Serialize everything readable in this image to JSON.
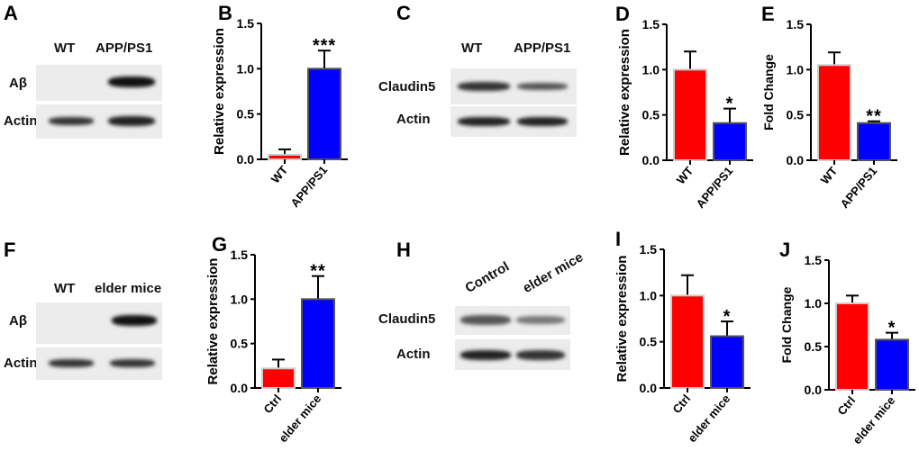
{
  "panels": {
    "A": {
      "letter": "A",
      "lanes": [
        "WT",
        "APP/PS1"
      ],
      "rows": [
        "Aβ",
        "Actin"
      ]
    },
    "C": {
      "letter": "C",
      "lanes": [
        "WT",
        "APP/PS1"
      ],
      "rows": [
        "Claudin5",
        "Actin"
      ]
    },
    "F": {
      "letter": "F",
      "lanes": [
        "WT",
        "elder mice"
      ],
      "rows": [
        "Aβ",
        "Actin"
      ]
    },
    "H": {
      "letter": "H",
      "lanes": [
        "Control",
        "elder mice"
      ],
      "rows": [
        "Claudin5",
        "Actin"
      ]
    }
  },
  "chart_data": [
    {
      "panel": "B",
      "type": "bar",
      "ylabel": "Relative expression",
      "ylim": [
        0,
        1.5
      ],
      "yticks": [
        "0.0",
        "0.5",
        "1.0",
        "1.5"
      ],
      "categories": [
        "WT",
        "APP/PS1"
      ],
      "values": [
        0.05,
        1.0
      ],
      "errors": [
        0.06,
        0.2
      ],
      "significance": [
        "",
        "***"
      ],
      "colors": [
        "#ff0000",
        "#0000ff"
      ]
    },
    {
      "panel": "D",
      "type": "bar",
      "ylabel": "Relative expression",
      "ylim": [
        0,
        1.5
      ],
      "yticks": [
        "0.0",
        "0.5",
        "1.0",
        "1.5"
      ],
      "categories": [
        "WT",
        "APP/PS1"
      ],
      "values": [
        1.0,
        0.41
      ],
      "errors": [
        0.2,
        0.16
      ],
      "significance": [
        "",
        "*"
      ],
      "colors": [
        "#ff0000",
        "#0000ff"
      ]
    },
    {
      "panel": "E",
      "type": "bar",
      "ylabel": "Fold Change",
      "ylim": [
        0,
        1.5
      ],
      "yticks": [
        "0.0",
        "0.5",
        "1.0",
        "1.5"
      ],
      "categories": [
        "WT",
        "APP/PS1"
      ],
      "values": [
        1.05,
        0.41
      ],
      "errors": [
        0.14,
        0.02
      ],
      "significance": [
        "",
        "**"
      ],
      "colors": [
        "#ff0000",
        "#0000ff"
      ]
    },
    {
      "panel": "G",
      "type": "bar",
      "ylabel": "Relative expression",
      "ylim": [
        0,
        1.5
      ],
      "yticks": [
        "0.0",
        "0.5",
        "1.0",
        "1.5"
      ],
      "categories": [
        "Ctrl",
        "elder mice"
      ],
      "values": [
        0.22,
        1.0
      ],
      "errors": [
        0.1,
        0.26
      ],
      "significance": [
        "",
        "**"
      ],
      "colors": [
        "#ff0000",
        "#0000ff"
      ]
    },
    {
      "panel": "I",
      "type": "bar",
      "ylabel": "Relative expression",
      "ylim": [
        0,
        1.5
      ],
      "yticks": [
        "0.0",
        "0.5",
        "1.0",
        "1.5"
      ],
      "categories": [
        "Ctrl",
        "elder mice"
      ],
      "values": [
        1.0,
        0.56
      ],
      "errors": [
        0.22,
        0.16
      ],
      "significance": [
        "",
        "*"
      ],
      "colors": [
        "#ff0000",
        "#0000ff"
      ]
    },
    {
      "panel": "J",
      "type": "bar",
      "ylabel": "Fold Change",
      "ylim": [
        0,
        1.5
      ],
      "yticks": [
        "0.0",
        "0.5",
        "1.0",
        "1.5"
      ],
      "categories": [
        "Ctrl",
        "elder mice"
      ],
      "values": [
        1.0,
        0.58
      ],
      "errors": [
        0.09,
        0.08
      ],
      "significance": [
        "",
        "*"
      ],
      "colors": [
        "#ff0000",
        "#0000ff"
      ]
    }
  ]
}
